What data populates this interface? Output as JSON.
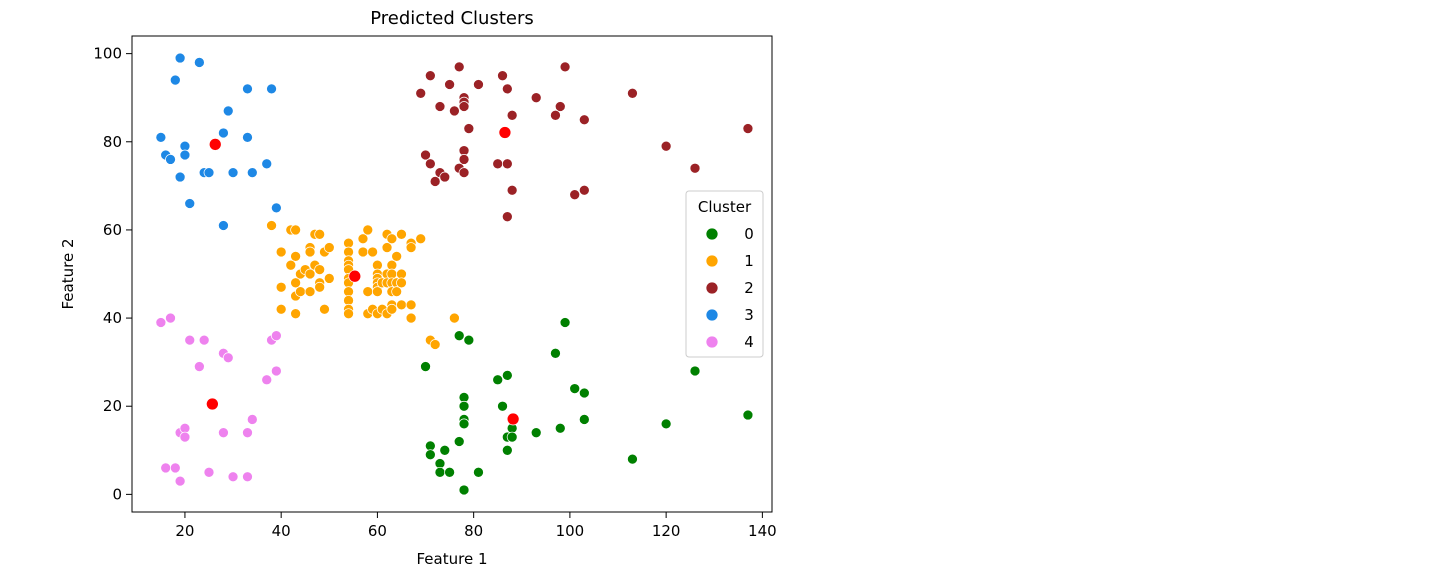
{
  "chart_data": {
    "type": "scatter",
    "title": "Predicted Clusters",
    "xlabel": "Feature 1",
    "ylabel": "Feature 2",
    "xlim": [
      9,
      142
    ],
    "ylim": [
      -4,
      104
    ],
    "x_ticks": [
      20,
      40,
      60,
      80,
      100,
      120,
      140
    ],
    "y_ticks": [
      0,
      20,
      40,
      60,
      80,
      100
    ],
    "grid": false,
    "legend": {
      "title": "Cluster",
      "placement": "right",
      "entries": [
        "0",
        "1",
        "2",
        "3",
        "4"
      ]
    },
    "series": [
      {
        "name": "0",
        "color": "#008000",
        "points": [
          [
            70,
            29
          ],
          [
            71,
            11
          ],
          [
            71,
            9
          ],
          [
            73,
            7
          ],
          [
            73,
            5
          ],
          [
            74,
            10
          ],
          [
            75,
            5
          ],
          [
            77,
            12
          ],
          [
            77,
            36
          ],
          [
            78,
            1
          ],
          [
            78,
            22
          ],
          [
            78,
            20
          ],
          [
            78,
            17
          ],
          [
            78,
            16
          ],
          [
            79,
            35
          ],
          [
            81,
            5
          ],
          [
            85,
            26
          ],
          [
            86,
            20
          ],
          [
            87,
            27
          ],
          [
            87,
            13
          ],
          [
            87,
            10
          ],
          [
            88,
            15
          ],
          [
            88,
            13
          ],
          [
            93,
            14
          ],
          [
            97,
            32
          ],
          [
            98,
            15
          ],
          [
            99,
            39
          ],
          [
            101,
            24
          ],
          [
            103,
            23
          ],
          [
            103,
            17
          ],
          [
            113,
            8
          ],
          [
            120,
            16
          ],
          [
            126,
            28
          ],
          [
            137,
            18
          ]
        ]
      },
      {
        "name": "1",
        "color": "#FFA500",
        "points": [
          [
            38,
            61
          ],
          [
            40,
            55
          ],
          [
            40,
            47
          ],
          [
            40,
            42
          ],
          [
            42,
            60
          ],
          [
            42,
            52
          ],
          [
            43,
            60
          ],
          [
            43,
            54
          ],
          [
            43,
            48
          ],
          [
            43,
            45
          ],
          [
            43,
            41
          ],
          [
            44,
            50
          ],
          [
            44,
            46
          ],
          [
            45,
            51
          ],
          [
            46,
            56
          ],
          [
            46,
            55
          ],
          [
            46,
            50
          ],
          [
            46,
            46
          ],
          [
            47,
            59
          ],
          [
            47,
            52
          ],
          [
            48,
            51
          ],
          [
            48,
            48
          ],
          [
            48,
            47
          ],
          [
            48,
            59
          ],
          [
            49,
            55
          ],
          [
            49,
            42
          ],
          [
            50,
            56
          ],
          [
            50,
            49
          ],
          [
            54,
            57
          ],
          [
            54,
            55
          ],
          [
            54,
            53
          ],
          [
            54,
            52
          ],
          [
            54,
            51
          ],
          [
            54,
            49
          ],
          [
            54,
            48
          ],
          [
            54,
            46
          ],
          [
            54,
            44
          ],
          [
            54,
            42
          ],
          [
            54,
            41
          ],
          [
            57,
            55
          ],
          [
            57,
            58
          ],
          [
            58,
            60
          ],
          [
            58,
            46
          ],
          [
            58,
            41
          ],
          [
            59,
            55
          ],
          [
            59,
            42
          ],
          [
            60,
            52
          ],
          [
            60,
            50
          ],
          [
            60,
            49
          ],
          [
            60,
            48
          ],
          [
            60,
            47
          ],
          [
            60,
            46
          ],
          [
            60,
            41
          ],
          [
            61,
            42
          ],
          [
            61,
            48
          ],
          [
            62,
            59
          ],
          [
            62,
            56
          ],
          [
            62,
            50
          ],
          [
            62,
            48
          ],
          [
            62,
            41
          ],
          [
            63,
            58
          ],
          [
            63,
            52
          ],
          [
            63,
            50
          ],
          [
            63,
            48
          ],
          [
            63,
            46
          ],
          [
            63,
            43
          ],
          [
            63,
            42
          ],
          [
            64,
            54
          ],
          [
            64,
            48
          ],
          [
            64,
            46
          ],
          [
            65,
            59
          ],
          [
            65,
            50
          ],
          [
            65,
            48
          ],
          [
            65,
            43
          ],
          [
            67,
            57
          ],
          [
            67,
            56
          ],
          [
            67,
            43
          ],
          [
            67,
            40
          ],
          [
            69,
            58
          ],
          [
            71,
            35
          ],
          [
            72,
            34
          ],
          [
            76,
            40
          ]
        ]
      },
      {
        "name": "2",
        "color": "#9B2226",
        "points": [
          [
            69,
            91
          ],
          [
            70,
            77
          ],
          [
            71,
            95
          ],
          [
            71,
            75
          ],
          [
            72,
            71
          ],
          [
            73,
            88
          ],
          [
            73,
            73
          ],
          [
            74,
            72
          ],
          [
            75,
            93
          ],
          [
            76,
            87
          ],
          [
            77,
            97
          ],
          [
            77,
            74
          ],
          [
            78,
            90
          ],
          [
            78,
            89
          ],
          [
            78,
            88
          ],
          [
            78,
            78
          ],
          [
            78,
            76
          ],
          [
            78,
            73
          ],
          [
            79,
            83
          ],
          [
            81,
            93
          ],
          [
            85,
            75
          ],
          [
            86,
            95
          ],
          [
            87,
            92
          ],
          [
            87,
            75
          ],
          [
            87,
            63
          ],
          [
            88,
            86
          ],
          [
            88,
            69
          ],
          [
            93,
            90
          ],
          [
            97,
            86
          ],
          [
            98,
            88
          ],
          [
            99,
            97
          ],
          [
            101,
            68
          ],
          [
            103,
            85
          ],
          [
            103,
            69
          ],
          [
            113,
            91
          ],
          [
            120,
            79
          ],
          [
            126,
            74
          ],
          [
            137,
            83
          ]
        ]
      },
      {
        "name": "3",
        "color": "#1E88E5",
        "points": [
          [
            15,
            81
          ],
          [
            16,
            77
          ],
          [
            17,
            76
          ],
          [
            18,
            94
          ],
          [
            19,
            99
          ],
          [
            19,
            72
          ],
          [
            20,
            79
          ],
          [
            20,
            77
          ],
          [
            21,
            66
          ],
          [
            23,
            98
          ],
          [
            24,
            73
          ],
          [
            25,
            73
          ],
          [
            28,
            82
          ],
          [
            28,
            61
          ],
          [
            29,
            87
          ],
          [
            30,
            73
          ],
          [
            33,
            92
          ],
          [
            33,
            81
          ],
          [
            34,
            73
          ],
          [
            37,
            75
          ],
          [
            38,
            92
          ],
          [
            39,
            65
          ]
        ]
      },
      {
        "name": "4",
        "color": "#EE82EE",
        "points": [
          [
            15,
            39
          ],
          [
            16,
            6
          ],
          [
            17,
            40
          ],
          [
            18,
            6
          ],
          [
            19,
            14
          ],
          [
            19,
            3
          ],
          [
            20,
            15
          ],
          [
            20,
            13
          ],
          [
            21,
            35
          ],
          [
            23,
            29
          ],
          [
            24,
            35
          ],
          [
            25,
            5
          ],
          [
            28,
            32
          ],
          [
            28,
            14
          ],
          [
            29,
            31
          ],
          [
            30,
            4
          ],
          [
            33,
            14
          ],
          [
            33,
            4
          ],
          [
            34,
            17
          ],
          [
            37,
            26
          ],
          [
            38,
            35
          ],
          [
            39,
            36
          ],
          [
            39,
            28
          ]
        ]
      }
    ],
    "centroids": {
      "color": "#FF0000",
      "points": [
        [
          26.3,
          79.4
        ],
        [
          86.5,
          82.1
        ],
        [
          55.3,
          49.5
        ],
        [
          25.7,
          20.5
        ],
        [
          88.2,
          17.1
        ]
      ]
    }
  }
}
